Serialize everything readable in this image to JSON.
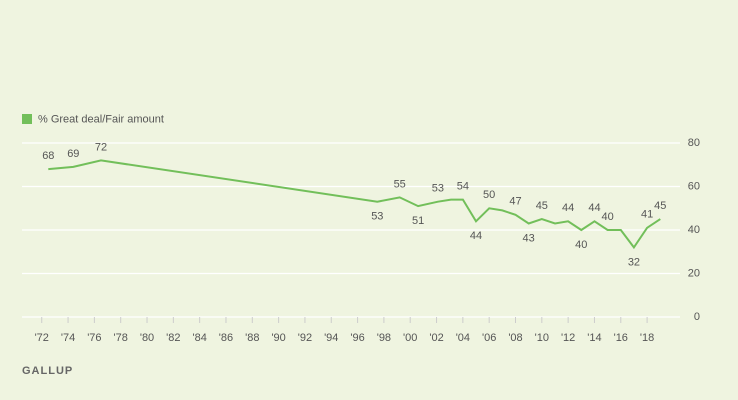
{
  "chart_data": {
    "type": "line",
    "legend_label": "% Great deal/Fair amount",
    "source": "GALLUP",
    "color": "#72bf5a",
    "x": [
      1972.5,
      1974.4,
      1976.5,
      1997.5,
      1999.2,
      2000.6,
      2002.1,
      2003.1,
      2004.0,
      2005.0,
      2006.0,
      2007.0,
      2008.0,
      2009.0,
      2010.0,
      2011.0,
      2012.0,
      2013.0,
      2014.0,
      2015.0,
      2016.0,
      2017.0,
      2018.0,
      2019.0
    ],
    "values": [
      68,
      69,
      72,
      53,
      55,
      51,
      53,
      54,
      54,
      44,
      50,
      49,
      47,
      43,
      45,
      43,
      44,
      40,
      44,
      40,
      40,
      32,
      41,
      45
    ],
    "value_labels": [
      "68",
      "69",
      "72",
      "53",
      "55",
      "51",
      "53",
      null,
      "54",
      "44",
      "50",
      null,
      "47",
      "43",
      "45",
      null,
      "44",
      "40",
      "44",
      "40",
      null,
      "32",
      "41",
      "45"
    ],
    "xlim": [
      1970.5,
      2020.5
    ],
    "xticks": [
      {
        "value": 1972,
        "label": "'72"
      },
      {
        "value": 1974,
        "label": "'74"
      },
      {
        "value": 1976,
        "label": "'76"
      },
      {
        "value": 1978,
        "label": "'78"
      },
      {
        "value": 1980,
        "label": "'80"
      },
      {
        "value": 1982,
        "label": "'82"
      },
      {
        "value": 1984,
        "label": "'84"
      },
      {
        "value": 1986,
        "label": "'86"
      },
      {
        "value": 1988,
        "label": "'88"
      },
      {
        "value": 1990,
        "label": "'90"
      },
      {
        "value": 1992,
        "label": "'92"
      },
      {
        "value": 1994,
        "label": "'94"
      },
      {
        "value": 1996,
        "label": "'96"
      },
      {
        "value": 1998,
        "label": "'98"
      },
      {
        "value": 2000,
        "label": "'00"
      },
      {
        "value": 2002,
        "label": "'02"
      },
      {
        "value": 2004,
        "label": "'04"
      },
      {
        "value": 2006,
        "label": "'06"
      },
      {
        "value": 2008,
        "label": "'08"
      },
      {
        "value": 2010,
        "label": "'10"
      },
      {
        "value": 2012,
        "label": "'12"
      },
      {
        "value": 2014,
        "label": "'14"
      },
      {
        "value": 2016,
        "label": "'16"
      },
      {
        "value": 2018,
        "label": "'18"
      }
    ],
    "ylim": [
      0,
      80
    ],
    "yticks": [
      0,
      20,
      40,
      60,
      80
    ],
    "grid": true
  }
}
